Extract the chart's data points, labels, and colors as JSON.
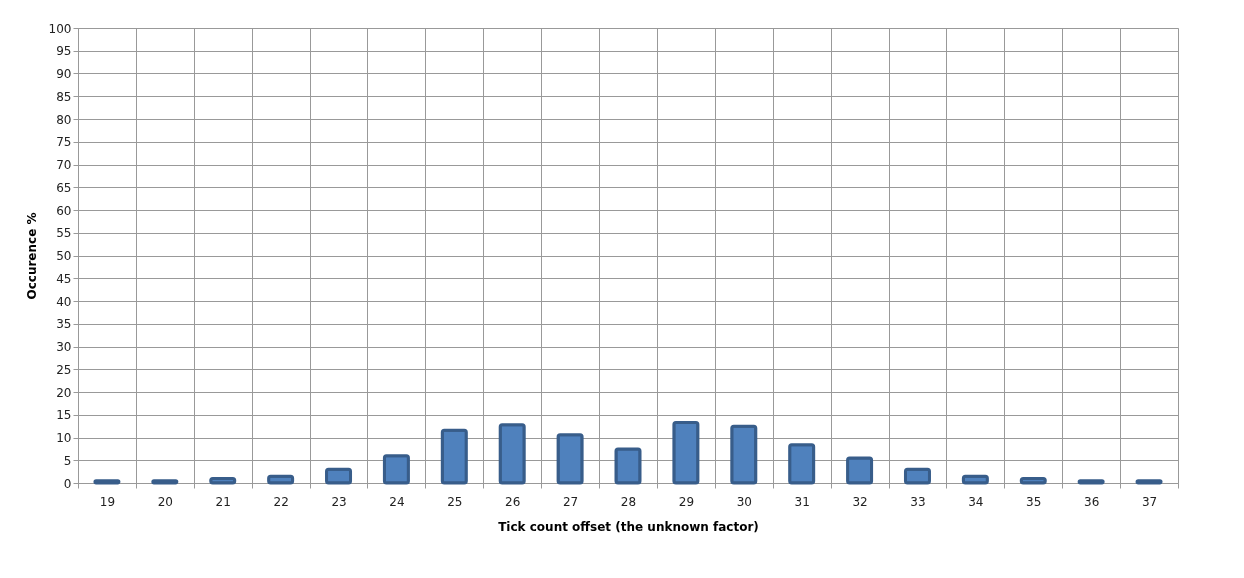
{
  "chart_data": {
    "type": "bar",
    "xlabel": "Tick count offset (the unknown factor)",
    "ylabel": "Occurence %",
    "categories": [
      "19",
      "20",
      "21",
      "22",
      "23",
      "24",
      "25",
      "26",
      "27",
      "28",
      "29",
      "30",
      "31",
      "32",
      "33",
      "34",
      "35",
      "36",
      "37"
    ],
    "values": [
      0.5,
      0.5,
      1,
      1.5,
      3,
      6,
      11.6,
      12.8,
      10.6,
      7.5,
      13.3,
      12.5,
      8.4,
      5.5,
      3,
      1.5,
      1,
      0.5,
      0.5
    ],
    "color": "#4f81bd",
    "ylim": [
      0,
      100
    ],
    "yticks": [
      0,
      5,
      10,
      15,
      20,
      25,
      30,
      35,
      40,
      45,
      50,
      55,
      60,
      65,
      70,
      75,
      80,
      85,
      90,
      95,
      100
    ],
    "grid": true
  }
}
